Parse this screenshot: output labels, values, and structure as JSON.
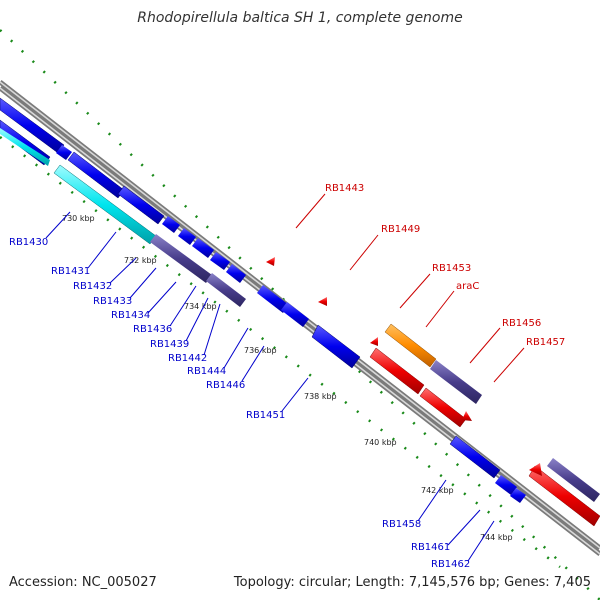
{
  "title": "Rhodopirellula baltica SH 1, complete genome",
  "footer": {
    "accession": "Accession: NC_005027",
    "summary": "Topology: circular; Length: 7,145,576 bp; Genes: 7,405"
  },
  "colors": {
    "forward_cds": "#0000ee",
    "forward_other": "#00e5ee",
    "forward_alt": "#483d8b",
    "reverse_cds": "#ee0000",
    "reverse_alt": "#ff8c00",
    "backbone": "#808080",
    "gc_dots": "#006400",
    "label_forward": "#0000cc",
    "label_reverse": "#cc0000"
  },
  "kbp_ticks": [
    "730 kbp",
    "732 kbp",
    "734 kbp",
    "736 kbp",
    "738 kbp",
    "740 kbp",
    "742 kbp",
    "744 kbp"
  ],
  "forward_labels": [
    "RB1430",
    "RB1431",
    "RB1432",
    "RB1433",
    "RB1434",
    "RB1436",
    "RB1439",
    "RB1442",
    "RB1444",
    "RB1446",
    "RB1451",
    "RB1458",
    "RB1461",
    "RB1462"
  ],
  "reverse_labels": [
    "RB1443",
    "RB1449",
    "RB1453",
    "araC",
    "RB1456",
    "RB1457"
  ]
}
